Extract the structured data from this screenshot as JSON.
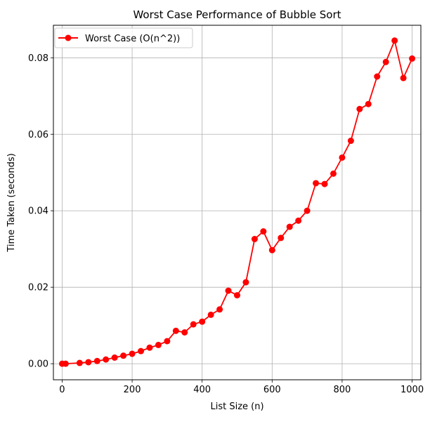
{
  "colors": {
    "series": "#ff0000",
    "grid": "#b0b0b0",
    "axis": "#000000",
    "background": "#ffffff"
  },
  "chart_data": {
    "type": "line",
    "title": "Worst Case Performance of Bubble Sort",
    "xlabel": "List Size (n)",
    "ylabel": "Time Taken (seconds)",
    "xlim": [
      -25,
      1025
    ],
    "ylim": [
      -0.0042,
      0.0885
    ],
    "xticks": [
      0,
      200,
      400,
      600,
      800,
      1000
    ],
    "xtick_labels": [
      "0",
      "200",
      "400",
      "600",
      "800",
      "1000"
    ],
    "yticks": [
      0.0,
      0.02,
      0.04,
      0.06,
      0.08
    ],
    "ytick_labels": [
      "0.00",
      "0.02",
      "0.04",
      "0.06",
      "0.08"
    ],
    "grid": true,
    "legend_position": "top-left",
    "marker": "circle",
    "series": [
      {
        "name": "Worst Case (O(n^2))",
        "color": "#ff0000",
        "x": [
          0,
          10,
          50,
          75,
          100,
          125,
          150,
          175,
          200,
          225,
          250,
          275,
          300,
          325,
          350,
          375,
          400,
          425,
          450,
          475,
          500,
          525,
          550,
          575,
          600,
          625,
          650,
          675,
          700,
          725,
          750,
          775,
          800,
          825,
          850,
          875,
          900,
          925,
          950,
          975,
          1000
        ],
        "y": [
          0.0,
          0.0,
          0.0002,
          0.0004,
          0.0007,
          0.0011,
          0.0016,
          0.0021,
          0.0026,
          0.0033,
          0.0042,
          0.0049,
          0.0059,
          0.0086,
          0.0082,
          0.0103,
          0.011,
          0.0128,
          0.0142,
          0.0191,
          0.0179,
          0.0213,
          0.0326,
          0.0346,
          0.0297,
          0.0329,
          0.0358,
          0.0374,
          0.04,
          0.0472,
          0.047,
          0.0497,
          0.0539,
          0.0583,
          0.0666,
          0.0679,
          0.0751,
          0.0789,
          0.0845,
          0.0747,
          0.0798
        ]
      }
    ]
  }
}
